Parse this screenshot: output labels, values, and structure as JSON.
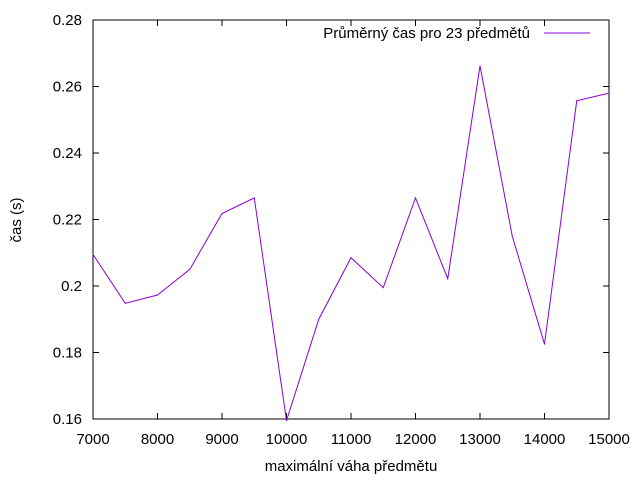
{
  "chart_data": {
    "type": "line",
    "xlabel": "maximální váha předmětu",
    "ylabel": "čas (s)",
    "xlim": [
      7000,
      15000
    ],
    "ylim": [
      0.16,
      0.28
    ],
    "xticks": [
      7000,
      8000,
      9000,
      10000,
      11000,
      12000,
      13000,
      14000,
      15000
    ],
    "yticks": [
      0.16,
      0.18,
      0.2,
      0.22,
      0.24,
      0.26,
      0.28
    ],
    "xtick_labels": [
      "7000",
      "8000",
      "9000",
      "10000",
      "11000",
      "12000",
      "13000",
      "14000",
      "15000"
    ],
    "ytick_labels": [
      "0.16",
      "0.18",
      "0.2",
      "0.22",
      "0.24",
      "0.26",
      "0.28"
    ],
    "grid": false,
    "legend_position": "top-right",
    "series": [
      {
        "name": "Průměrný čas pro 23 předmětů",
        "color": "#8b00d4",
        "x": [
          7000,
          7500,
          8000,
          8500,
          9000,
          9500,
          10000,
          10500,
          11000,
          11500,
          12000,
          12500,
          13000,
          13500,
          14000,
          14500,
          15000
        ],
        "y": [
          0.2095,
          0.1948,
          0.1973,
          0.205,
          0.2218,
          0.2265,
          0.1595,
          0.19,
          0.2085,
          0.1995,
          0.2265,
          0.2022,
          0.2662,
          0.215,
          0.1825,
          0.2557,
          0.258
        ]
      }
    ]
  }
}
